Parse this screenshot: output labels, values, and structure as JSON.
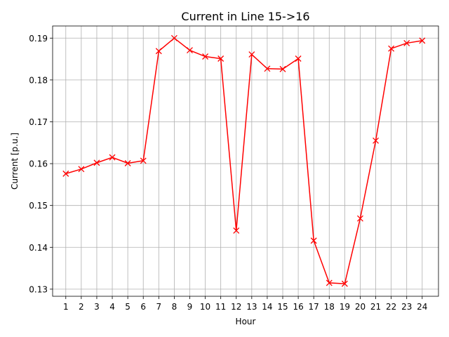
{
  "chart_data": {
    "type": "line",
    "title": "Current in Line 15->16",
    "xlabel": "Hour",
    "ylabel": "Current  [p.u.]",
    "x": [
      1,
      2,
      3,
      4,
      5,
      6,
      7,
      8,
      9,
      10,
      11,
      12,
      13,
      14,
      15,
      16,
      17,
      18,
      19,
      20,
      21,
      22,
      23,
      24
    ],
    "series": [
      {
        "values": [
          0.1576,
          0.1587,
          0.1602,
          0.1615,
          0.1601,
          0.1607,
          0.1869,
          0.19,
          0.1871,
          0.1856,
          0.1851,
          0.144,
          0.1861,
          0.1827,
          0.1826,
          0.1851,
          0.1416,
          0.1315,
          0.1313,
          0.1469,
          0.1655,
          0.1875,
          0.1888,
          0.1894
        ],
        "color": "#ff0000",
        "marker": "x"
      }
    ],
    "xlim": [
      0.15,
      25.05
    ],
    "ylim": [
      0.1283,
      0.1929
    ],
    "yticks": [
      "0.13",
      "0.14",
      "0.15",
      "0.16",
      "0.17",
      "0.18",
      "0.19"
    ],
    "grid": true
  }
}
